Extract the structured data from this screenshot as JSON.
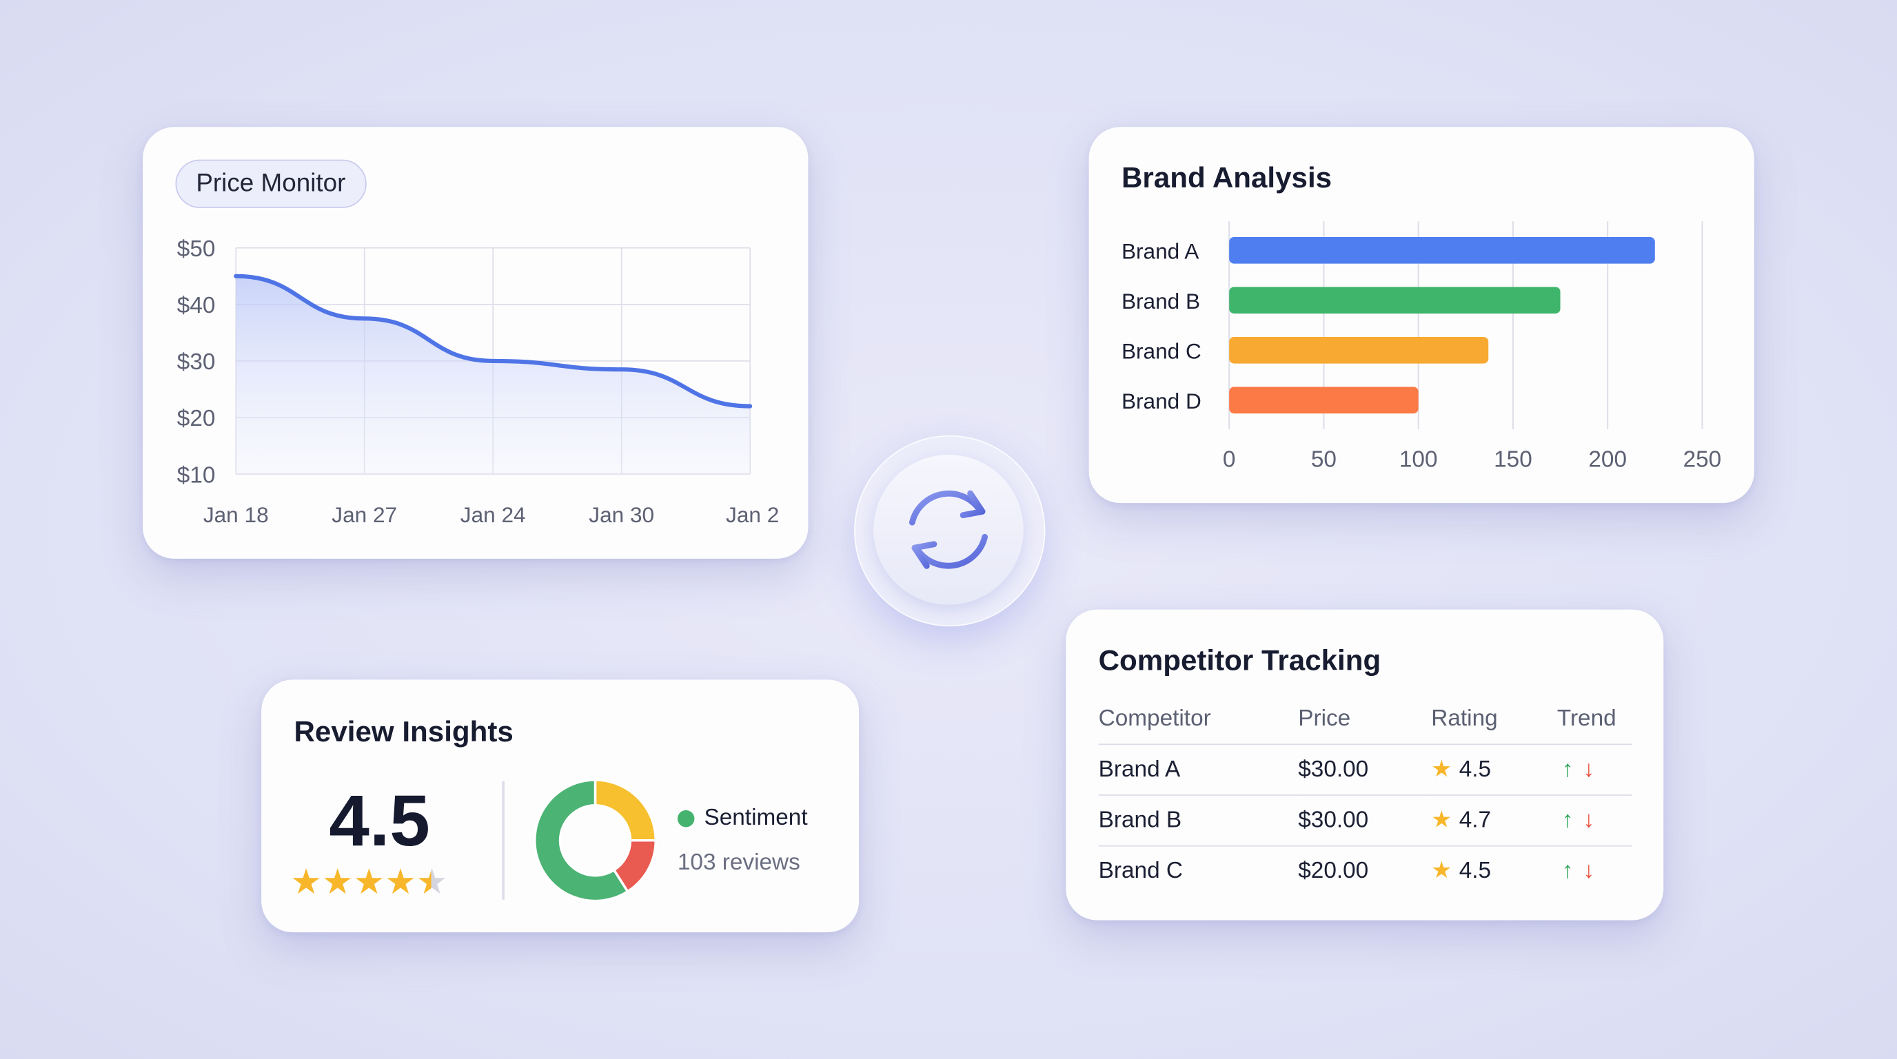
{
  "price_monitor": {
    "title": "Price Monitor",
    "chart_data": {
      "type": "area",
      "x": [
        "Jan 18",
        "Jan 27",
        "Jan 24",
        "Jan 30",
        "Jan 2"
      ],
      "values": [
        45,
        37.5,
        30,
        28.5,
        22
      ],
      "yticks": [
        "$50",
        "$40",
        "$30",
        "$20",
        "$10"
      ],
      "ylim": [
        10,
        50
      ],
      "grid": true,
      "line_color": "#4f74e6"
    }
  },
  "brand_analysis": {
    "title": "Brand Analysis",
    "chart_data": {
      "type": "bar",
      "orientation": "horizontal",
      "categories": [
        "Brand A",
        "Brand B",
        "Brand C",
        "Brand D"
      ],
      "values": [
        225,
        175,
        137,
        100
      ],
      "colors": [
        "#4f7ef0",
        "#3fb56b",
        "#f8a931",
        "#fb7a45"
      ],
      "xticks": [
        "0",
        "50",
        "100",
        "150",
        "200",
        "250"
      ],
      "xlim": [
        0,
        250
      ],
      "grid": true
    }
  },
  "review_insights": {
    "title": "Review Insights",
    "rating": "4.5",
    "stars": 4.5,
    "legend_label": "Sentiment",
    "legend_color": "#45b36e",
    "reviews": "103 reviews",
    "chart_data": {
      "type": "pie",
      "donut": true,
      "values": [
        25,
        16,
        59
      ],
      "colors": [
        "#f6c02e",
        "#e95a50",
        "#4bb374"
      ]
    }
  },
  "competitor_tracking": {
    "title": "Competitor Tracking",
    "columns": [
      "Competitor",
      "Price",
      "Rating",
      "Trend"
    ],
    "rows": [
      {
        "name": "Brand A",
        "price": "$30.00",
        "rating": "4.5"
      },
      {
        "name": "Brand B",
        "price": "$30.00",
        "rating": "4.7"
      },
      {
        "name": "Brand C",
        "price": "$20.00",
        "rating": "4.5"
      }
    ]
  },
  "refresh": {
    "icon": "refresh-icon",
    "color": "#6a78e0"
  }
}
